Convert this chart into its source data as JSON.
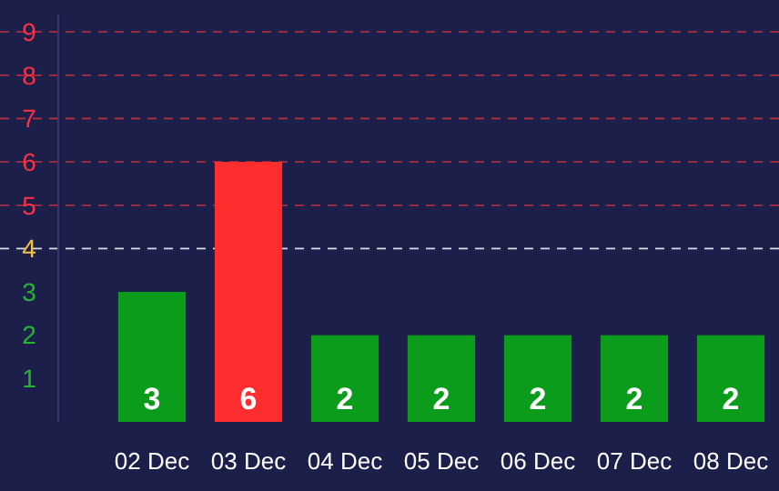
{
  "chart_data": {
    "type": "bar",
    "categories": [
      "02 Dec",
      "03 Dec",
      "04 Dec",
      "05 Dec",
      "06 Dec",
      "07 Dec",
      "08 Dec"
    ],
    "values": [
      3,
      6,
      2,
      2,
      2,
      2,
      2
    ],
    "colors": [
      "#0a9c1a",
      "#ff2d2d",
      "#0a9c1a",
      "#0a9c1a",
      "#0a9c1a",
      "#0a9c1a",
      "#0a9c1a"
    ],
    "ylim": [
      0,
      9.4
    ],
    "yticks": [
      1,
      2,
      3,
      4,
      5,
      6,
      7,
      8,
      9
    ],
    "data_labels": true,
    "grid": false,
    "ref_lines": [
      {
        "axis": "y",
        "value": 4,
        "color": "#d9d9e6",
        "line_style": "dashed"
      },
      {
        "axis": "y",
        "value": 5,
        "color": "#c0303a",
        "line_style": "dashed"
      },
      {
        "axis": "y",
        "value": 6,
        "color": "#c0303a",
        "line_style": "dashed"
      },
      {
        "axis": "y",
        "value": 7,
        "color": "#c0303a",
        "line_style": "dashed"
      },
      {
        "axis": "y",
        "value": 8,
        "color": "#c0303a",
        "line_style": "dashed"
      },
      {
        "axis": "y",
        "value": 9,
        "color": "#c0303a",
        "line_style": "dashed"
      }
    ]
  }
}
